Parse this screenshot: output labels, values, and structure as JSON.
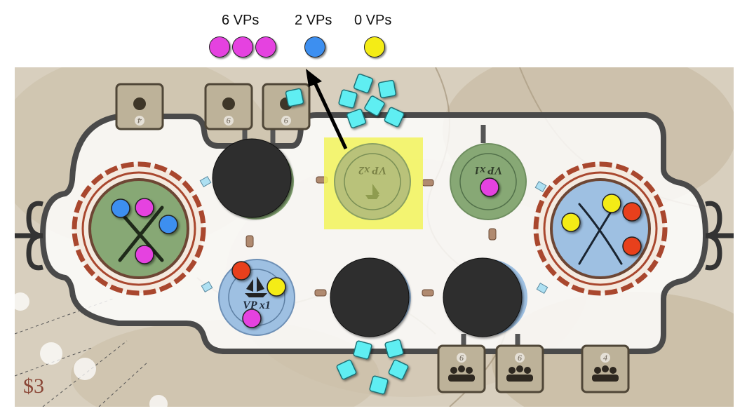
{
  "scoreboard": [
    {
      "label": "6 VPs",
      "color": "#e542e0",
      "count": 3
    },
    {
      "label": "2 VPs",
      "color": "#3d8ff0",
      "count": 1
    },
    {
      "label": "0 VPs",
      "color": "#f4ec16",
      "count": 1
    }
  ],
  "money": "$3",
  "colors": {
    "magenta": "#e542e0",
    "blue": "#3d8ff0",
    "yellow": "#f4ec16",
    "red": "#e8401c",
    "cube": "#5eeef2",
    "green_disc": "#87a875",
    "blue_disc": "#9ec0e2",
    "highlight": "#f2f35a",
    "hole": "#2f2f2f"
  },
  "locations": {
    "left_home": {
      "icon": "crossed-pistols-icon",
      "tokens": [
        "blue",
        "magenta",
        "blue",
        "magenta"
      ]
    },
    "right_home": {
      "icon": "crossed-sabres-icon",
      "tokens": [
        "yellow",
        "yellow",
        "red",
        "red"
      ]
    },
    "top_center_green": {
      "label": "VP x2",
      "icon": "ship-icon",
      "highlighted": true,
      "tokens": []
    },
    "top_right_green": {
      "label": "VP x1",
      "tokens": [
        "magenta"
      ]
    },
    "bottom_left_blue": {
      "label": "VP x1",
      "icon": "ship-icon",
      "tokens": [
        "red",
        "yellow",
        "magenta"
      ]
    }
  },
  "top_tiles": [
    {
      "value": "4",
      "icon": "trefoil-icon"
    },
    {
      "value": "9",
      "icon": "trefoil-icon"
    },
    {
      "value": "9",
      "icon": "trefoil-icon"
    }
  ],
  "bottom_tiles": [
    {
      "value": "6",
      "icon": "people-icon"
    },
    {
      "value": "6",
      "icon": "people-icon"
    },
    {
      "value": "4",
      "icon": "people-icon"
    }
  ],
  "cube_counts": {
    "top_pile": 7,
    "bottom_pile": 5
  }
}
